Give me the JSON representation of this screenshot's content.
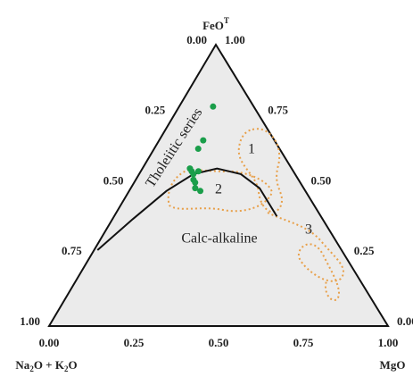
{
  "chart_data": {
    "type": "ternary",
    "apex_labels": {
      "top": [
        "FeO",
        "T"
      ],
      "left": [
        "Na",
        "2",
        "O + K",
        "2",
        "O"
      ],
      "right": [
        "MgO"
      ]
    },
    "axes": {
      "left": {
        "ticks": [
          {
            "value": 0,
            "label": "0.00"
          },
          {
            "value": 0.25,
            "label": "0.25"
          },
          {
            "value": 0.5,
            "label": "0.50"
          },
          {
            "value": 0.75,
            "label": "0.75"
          },
          {
            "value": 1,
            "label": "1.00"
          }
        ]
      },
      "right": {
        "ticks": [
          {
            "value": 1,
            "label": "1.00"
          },
          {
            "value": 0.75,
            "label": "0.75"
          },
          {
            "value": 0.5,
            "label": "0.50"
          },
          {
            "value": 0.25,
            "label": "0.25"
          },
          {
            "value": 0,
            "label": "0.00"
          }
        ]
      },
      "bottom": {
        "ticks": [
          {
            "value": 0,
            "label": "0.00"
          },
          {
            "value": 0.25,
            "label": "0.25"
          },
          {
            "value": 0.5,
            "label": "0.50"
          },
          {
            "value": 0.75,
            "label": "0.75"
          },
          {
            "value": 1,
            "label": "1.00"
          }
        ]
      }
    },
    "points": {
      "color": "#1a9e4a",
      "feo": [
        0.78,
        0.66,
        0.63,
        0.56,
        0.55,
        0.54,
        0.52,
        0.51,
        0.49,
        0.48,
        0.55
      ],
      "mgo": [
        0.1,
        0.13,
        0.13,
        0.14,
        0.15,
        0.16,
        0.17,
        0.18,
        0.19,
        0.21,
        0.17
      ]
    },
    "boundary": {
      "color": "#111111",
      "feo": [
        0.27,
        0.38,
        0.48,
        0.54,
        0.56,
        0.54,
        0.49,
        0.39
      ],
      "mgo": [
        0.01,
        0.06,
        0.11,
        0.16,
        0.22,
        0.3,
        0.38,
        0.48
      ]
    },
    "annotations": [
      "Tholeiitic series",
      "Calc-alkaline",
      "1",
      "2",
      "3"
    ],
    "annotation_color": "#d4462f",
    "background": "#ebebeb"
  }
}
